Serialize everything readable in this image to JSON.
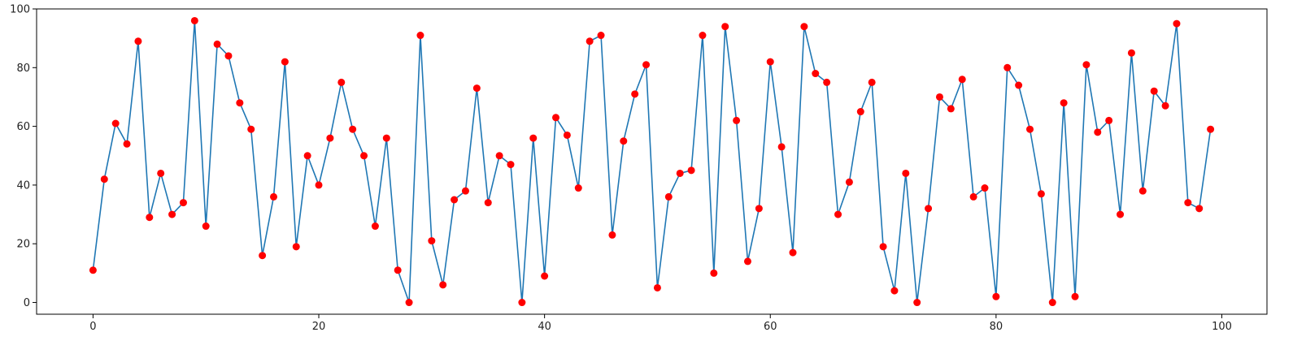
{
  "chart_data": {
    "type": "line",
    "title": "",
    "xlabel": "",
    "ylabel": "",
    "xlim": [
      -5,
      104
    ],
    "ylim": [
      -4,
      100
    ],
    "xticks": [
      0,
      20,
      40,
      60,
      80,
      100
    ],
    "yticks": [
      0,
      20,
      40,
      60,
      80,
      100
    ],
    "grid": false,
    "line_color": "#1f77b4",
    "marker_color": "#ff0000",
    "series": [
      {
        "x": [
          0,
          1,
          2,
          3,
          4,
          5,
          6,
          7,
          8,
          9,
          10,
          11,
          12,
          13,
          14,
          15,
          16,
          17,
          18,
          19,
          20,
          21,
          22,
          23,
          24,
          25,
          26,
          27,
          28,
          29,
          30,
          31,
          32,
          33,
          34,
          35,
          36,
          37,
          38,
          39,
          40,
          41,
          42,
          43,
          44,
          45,
          46,
          47,
          48,
          49,
          50,
          51,
          52,
          53,
          54,
          55,
          56,
          57,
          58,
          59,
          60,
          61,
          62,
          63,
          64,
          65,
          66,
          67,
          68,
          69,
          70,
          71,
          72,
          73,
          74,
          75,
          76,
          77,
          78,
          79,
          80,
          81,
          82,
          83,
          84,
          85,
          86,
          87,
          88,
          89,
          90,
          91,
          92,
          93,
          94,
          95,
          96,
          97,
          98,
          99
        ],
        "values": [
          11,
          42,
          61,
          54,
          89,
          29,
          44,
          30,
          34,
          96,
          26,
          88,
          84,
          68,
          59,
          16,
          36,
          82,
          19,
          50,
          40,
          56,
          75,
          59,
          50,
          26,
          56,
          11,
          0,
          91,
          21,
          6,
          35,
          38,
          73,
          34,
          50,
          47,
          0,
          56,
          9,
          63,
          57,
          39,
          89,
          91,
          23,
          55,
          71,
          81,
          5,
          36,
          44,
          45,
          91,
          10,
          94,
          62,
          14,
          32,
          82,
          53,
          17,
          94,
          78,
          75,
          30,
          41,
          65,
          75,
          19,
          4,
          44,
          0,
          32,
          70,
          66,
          76,
          36,
          39,
          2,
          80,
          74,
          59,
          37,
          0,
          68,
          2,
          81,
          58,
          62,
          30,
          85,
          38,
          72,
          67,
          95,
          34,
          32,
          59
        ]
      }
    ]
  }
}
